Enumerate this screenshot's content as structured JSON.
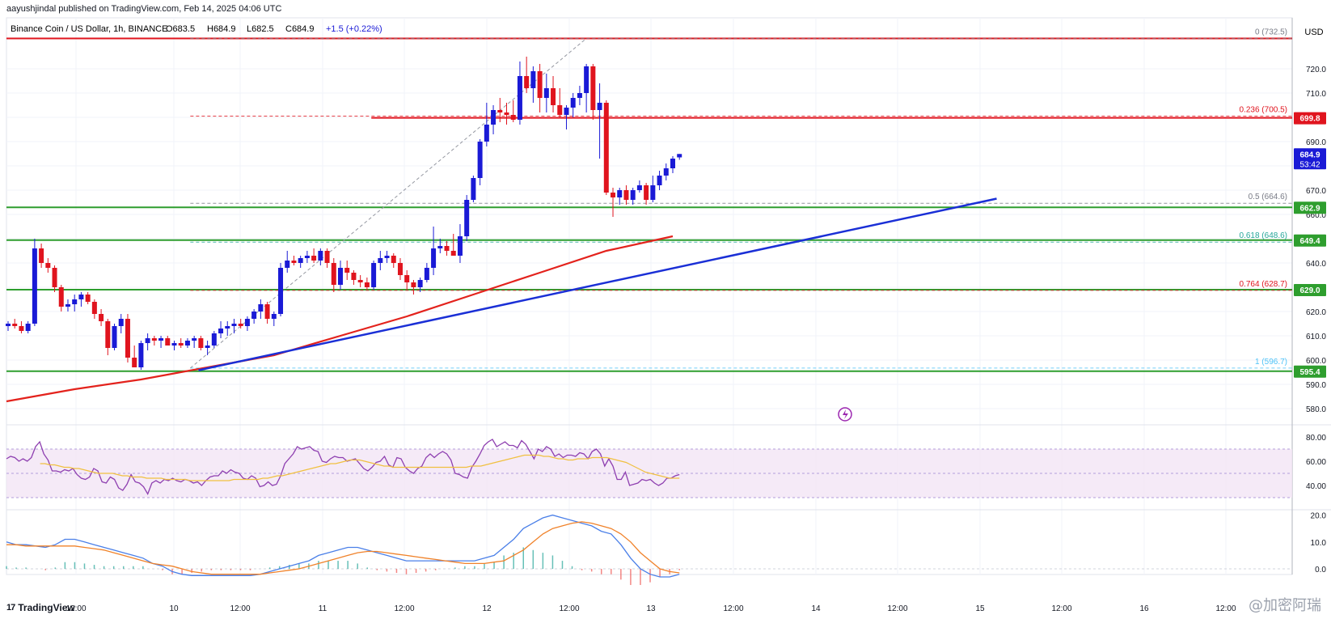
{
  "header": {
    "published": "aayushjindal published on TradingView.com, Feb 14, 2025 04:06 UTC"
  },
  "symbol_bar": {
    "title": "Binance Coin / US Dollar, 1h, BINANCE",
    "open": "O683.5",
    "high": "H684.9",
    "low": "L682.5",
    "close": "C684.9",
    "change": "+1.5 (+0.22%)"
  },
  "currency": "USD",
  "footer": {
    "brand": "TradingView",
    "watermark": "@加密阿瑞"
  },
  "colors": {
    "up_candle": "#1a1ad6",
    "down_candle": "#e0141e",
    "support_line": "#2e9e2e",
    "resistance_line": "#e0141e",
    "trendline": "#1a2fd6",
    "ma": "#e3221c",
    "rsi": "#8e3fb0",
    "rsi_ma": "#f0c040",
    "macd": "#4a7fe8",
    "signal": "#f0822a"
  },
  "chart_data": {
    "type": "candlestick",
    "timeframe": "1h",
    "y_axis": {
      "min": 575,
      "max": 735,
      "ticks": [
        580,
        590,
        600,
        610,
        620,
        630,
        640,
        650,
        660,
        670,
        680,
        690,
        700,
        710,
        720
      ]
    },
    "x_labels": [
      "12:00",
      "10",
      "12:00",
      "11",
      "12:00",
      "12",
      "12:00",
      "13",
      "12:00",
      "14",
      "12:00",
      "15",
      "12:00",
      "16",
      "12:00"
    ],
    "price_labels": [
      {
        "text": "699.8",
        "value": 699.8,
        "color": "#e0141e"
      },
      {
        "text": "684.9",
        "value": 684.9,
        "color": "#1a1ad6",
        "sub": "53:42"
      },
      {
        "text": "662.9",
        "value": 662.9,
        "color": "#2e9e2e"
      },
      {
        "text": "649.4",
        "value": 649.4,
        "color": "#2e9e2e"
      },
      {
        "text": "629.0",
        "value": 629.0,
        "color": "#2e9e2e"
      },
      {
        "text": "595.4",
        "value": 595.4,
        "color": "#2e9e2e"
      }
    ],
    "horizontal_lines": [
      {
        "value": 732.5,
        "color": "#e0141e",
        "style": "solid"
      },
      {
        "value": 699.8,
        "color": "#e0141e",
        "style": "solid",
        "from_x": 11.2
      },
      {
        "value": 662.9,
        "color": "#2e9e2e",
        "style": "solid"
      },
      {
        "value": 649.4,
        "color": "#2e9e2e",
        "style": "solid"
      },
      {
        "value": 629.0,
        "color": "#2e9e2e",
        "style": "solid"
      },
      {
        "value": 595.4,
        "color": "#2e9e2e",
        "style": "solid"
      }
    ],
    "fibonacci": [
      {
        "label": "0 (732.5)",
        "value": 732.5,
        "color": "#787b86"
      },
      {
        "label": "0.236 (700.5)",
        "value": 700.5,
        "color": "#e0141e"
      },
      {
        "label": "0.5 (664.6)",
        "value": 664.6,
        "color": "#787b86"
      },
      {
        "label": "0.618 (648.6)",
        "value": 648.6,
        "color": "#26a69a"
      },
      {
        "label": "0.764 (628.7)",
        "value": 628.7,
        "color": "#e0141e"
      },
      {
        "label": "1 (596.7)",
        "value": 596.7,
        "color": "#4fc3f7"
      }
    ],
    "trendline": {
      "from": {
        "t": 10.15,
        "value": 595.8
      },
      "to": {
        "t": 15.0,
        "value": 666.5
      }
    },
    "candles": [
      [
        0,
        614,
        616,
        612,
        615
      ],
      [
        1,
        615,
        617,
        613,
        614
      ],
      [
        2,
        614,
        616,
        611,
        612
      ],
      [
        3,
        612,
        616,
        611,
        615
      ],
      [
        4,
        615,
        650,
        614,
        646
      ],
      [
        5,
        646,
        648,
        638,
        640
      ],
      [
        6,
        640,
        642,
        636,
        638
      ],
      [
        7,
        638,
        639,
        628,
        630
      ],
      [
        8,
        630,
        631,
        620,
        622
      ],
      [
        9,
        622,
        625,
        620,
        623
      ],
      [
        10,
        623,
        627,
        620,
        625
      ],
      [
        11,
        625,
        628,
        622,
        627
      ],
      [
        12,
        627,
        628,
        623,
        624
      ],
      [
        13,
        624,
        625,
        617,
        619
      ],
      [
        14,
        619,
        621,
        614,
        616
      ],
      [
        15,
        616,
        617,
        602,
        605
      ],
      [
        16,
        605,
        615,
        604,
        614
      ],
      [
        17,
        614,
        619,
        611,
        617
      ],
      [
        18,
        617,
        619,
        599,
        601
      ],
      [
        19,
        601,
        606,
        597,
        597
      ],
      [
        20,
        597,
        608,
        596,
        607
      ],
      [
        21,
        607,
        611,
        604,
        609
      ],
      [
        22,
        609,
        610,
        606,
        608
      ],
      [
        23,
        608,
        610,
        605,
        609
      ],
      [
        24,
        609,
        610,
        606,
        606
      ],
      [
        25,
        606,
        608,
        604,
        607
      ],
      [
        26,
        607,
        609,
        605,
        606
      ],
      [
        27,
        606,
        609,
        605,
        608
      ],
      [
        28,
        608,
        610,
        605,
        609
      ],
      [
        29,
        609,
        610,
        604,
        605
      ],
      [
        30,
        605,
        608,
        602,
        606
      ],
      [
        31,
        606,
        612,
        605,
        611
      ],
      [
        32,
        611,
        616,
        609,
        613
      ],
      [
        33,
        613,
        616,
        610,
        614
      ],
      [
        34,
        614,
        617,
        611,
        615
      ],
      [
        35,
        615,
        617,
        613,
        614
      ],
      [
        36,
        614,
        618,
        612,
        617
      ],
      [
        37,
        617,
        621,
        615,
        620
      ],
      [
        38,
        620,
        625,
        617,
        623
      ],
      [
        39,
        623,
        624,
        615,
        617
      ],
      [
        40,
        617,
        620,
        614,
        619
      ],
      [
        41,
        619,
        640,
        618,
        638
      ],
      [
        42,
        638,
        645,
        636,
        641
      ],
      [
        43,
        641,
        643,
        639,
        640
      ],
      [
        44,
        640,
        643,
        638,
        642
      ],
      [
        45,
        642,
        645,
        640,
        643
      ],
      [
        46,
        643,
        646,
        640,
        641
      ],
      [
        47,
        641,
        646,
        639,
        645
      ],
      [
        48,
        645,
        646,
        638,
        640
      ],
      [
        49,
        640,
        642,
        628,
        631
      ],
      [
        50,
        631,
        641,
        629,
        638
      ],
      [
        51,
        638,
        641,
        633,
        636
      ],
      [
        52,
        636,
        637,
        631,
        633
      ],
      [
        53,
        633,
        635,
        630,
        632
      ],
      [
        54,
        632,
        634,
        629,
        630
      ],
      [
        55,
        630,
        641,
        629,
        640
      ],
      [
        56,
        640,
        645,
        637,
        642
      ],
      [
        57,
        642,
        645,
        640,
        643
      ],
      [
        58,
        643,
        644,
        638,
        640
      ],
      [
        59,
        640,
        642,
        633,
        635
      ],
      [
        60,
        635,
        637,
        629,
        632
      ],
      [
        61,
        632,
        633,
        627,
        630
      ],
      [
        62,
        630,
        634,
        628,
        633
      ],
      [
        63,
        633,
        640,
        632,
        638
      ],
      [
        64,
        638,
        655,
        635,
        646
      ],
      [
        65,
        646,
        650,
        644,
        647
      ],
      [
        66,
        647,
        649,
        643,
        645
      ],
      [
        67,
        645,
        652,
        643,
        643
      ],
      [
        68,
        643,
        656,
        640,
        651
      ],
      [
        69,
        651,
        668,
        649,
        666
      ],
      [
        70,
        666,
        676,
        665,
        675
      ],
      [
        71,
        675,
        691,
        672,
        690
      ],
      [
        72,
        690,
        706,
        688,
        697
      ],
      [
        73,
        697,
        705,
        693,
        703
      ],
      [
        74,
        703,
        708,
        698,
        702
      ],
      [
        75,
        702,
        706,
        697,
        701
      ],
      [
        76,
        701,
        707,
        698,
        699
      ],
      [
        77,
        699,
        723,
        697,
        717
      ],
      [
        78,
        717,
        725,
        710,
        712
      ],
      [
        79,
        712,
        721,
        706,
        719
      ],
      [
        80,
        719,
        722,
        702,
        708
      ],
      [
        81,
        708,
        718,
        702,
        712
      ],
      [
        82,
        712,
        717,
        702,
        705
      ],
      [
        83,
        705,
        712,
        700,
        701
      ],
      [
        84,
        701,
        705,
        695,
        704
      ],
      [
        85,
        704,
        710,
        700,
        708
      ],
      [
        86,
        708,
        713,
        705,
        710
      ],
      [
        87,
        710,
        722,
        702,
        721
      ],
      [
        88,
        721,
        722,
        699,
        703
      ],
      [
        89,
        703,
        714,
        683,
        706
      ],
      [
        90,
        706,
        707,
        668,
        669
      ],
      [
        91,
        669,
        671,
        659,
        667
      ],
      [
        92,
        667,
        671,
        664,
        670
      ],
      [
        93,
        670,
        672,
        664,
        666
      ],
      [
        94,
        666,
        671,
        664,
        670
      ],
      [
        95,
        670,
        674,
        669,
        672
      ],
      [
        96,
        672,
        673,
        664,
        666
      ],
      [
        97,
        666,
        676,
        665,
        672
      ],
      [
        98,
        672,
        678,
        670,
        676
      ],
      [
        99,
        676,
        681,
        674,
        679
      ],
      [
        100,
        679,
        684,
        677,
        683
      ],
      [
        101,
        683.5,
        684.9,
        682.5,
        684.9
      ]
    ],
    "ma_points": [
      [
        -0.2,
        583
      ],
      [
        1,
        588
      ],
      [
        2,
        592
      ],
      [
        3,
        597
      ],
      [
        4,
        602
      ],
      [
        5,
        610
      ],
      [
        6,
        618
      ],
      [
        7,
        627
      ],
      [
        8,
        636
      ],
      [
        9,
        645
      ],
      [
        10,
        651
      ]
    ],
    "rsi": {
      "range": [
        20,
        90
      ],
      "ticks": [
        40,
        60,
        80
      ],
      "band": [
        30,
        70
      ],
      "values": [
        62,
        64,
        63,
        60,
        62,
        60,
        63,
        72,
        76,
        66,
        61,
        52,
        52,
        51,
        53,
        52,
        54,
        49,
        46,
        45,
        47,
        54,
        52,
        43,
        42,
        47,
        45,
        38,
        36,
        41,
        49,
        43,
        42,
        39,
        33,
        42,
        44,
        42,
        45,
        44,
        46,
        44,
        43,
        45,
        44,
        42,
        43,
        40,
        44,
        47,
        48,
        48,
        52,
        50,
        53,
        51,
        50,
        46,
        45,
        48,
        46,
        39,
        40,
        43,
        40,
        41,
        48,
        58,
        62,
        66,
        72,
        70,
        71,
        72,
        69,
        68,
        60,
        59,
        62,
        64,
        63,
        63,
        60,
        61,
        62,
        58,
        54,
        52,
        55,
        59,
        60,
        64,
        57,
        55,
        63,
        62,
        55,
        52,
        50,
        54,
        56,
        63,
        66,
        63,
        66,
        68,
        66,
        61,
        50,
        49,
        47,
        46,
        55,
        60,
        66,
        73,
        76,
        78,
        72,
        74,
        76,
        73,
        73,
        71,
        77,
        74,
        68,
        62,
        70,
        68,
        72,
        70,
        64,
        66,
        63,
        65,
        65,
        64,
        67,
        66,
        62,
        68,
        70,
        66,
        56,
        62,
        56,
        45,
        45,
        51,
        40,
        41,
        42,
        45,
        44,
        45,
        42,
        40,
        42,
        46,
        46,
        48,
        49
      ],
      "ma_values": [
        58,
        58,
        57,
        57,
        56,
        55,
        55,
        54,
        54,
        53,
        52,
        51,
        50,
        50,
        50,
        50,
        49,
        48,
        48,
        47,
        47,
        47,
        46,
        46,
        46,
        46,
        45,
        45,
        45,
        45,
        45,
        44,
        44,
        44,
        44,
        44,
        44,
        44,
        44,
        44,
        45,
        45,
        45,
        45,
        45,
        45,
        46,
        46,
        47,
        48,
        48,
        49,
        50,
        51,
        52,
        53,
        54,
        55,
        56,
        57,
        58,
        58,
        59,
        60,
        61,
        61,
        61,
        60,
        59,
        58,
        57,
        56,
        56,
        55,
        55,
        55,
        55,
        55,
        55,
        55,
        55,
        55,
        55,
        55,
        55,
        55,
        55,
        55,
        55,
        56,
        56,
        56,
        57,
        58,
        59,
        60,
        61,
        62,
        63,
        64,
        65,
        65,
        65,
        65,
        64,
        64,
        63,
        62,
        62,
        61,
        61,
        62,
        62,
        62,
        63,
        63,
        63,
        63,
        62,
        61,
        60,
        59,
        57,
        55,
        53,
        51,
        50,
        49,
        48,
        47,
        46,
        46,
        46
      ]
    },
    "macd": {
      "range": [
        -3,
        22
      ],
      "ticks": [
        0.0,
        10.0,
        20.0
      ],
      "macd_values": [
        10,
        9,
        9,
        8.5,
        8,
        9,
        11,
        11,
        10,
        9,
        8,
        7,
        6,
        5,
        4,
        2,
        1,
        -1,
        -2,
        -2.5,
        -2.5,
        -2.5,
        -2.5,
        -2.5,
        -2.5,
        -2.5,
        -2,
        -1,
        0,
        1,
        2,
        3,
        5,
        6,
        7,
        8,
        8,
        7,
        6,
        5,
        4,
        3,
        3,
        3,
        3,
        3,
        3,
        3,
        3,
        4,
        5,
        8,
        11,
        15,
        17,
        19,
        20,
        19,
        18,
        17,
        16,
        14,
        13,
        9,
        4,
        0,
        -2,
        -3,
        -3,
        -2
      ],
      "signal_values": [
        9,
        9,
        8.5,
        8.5,
        8.5,
        8.5,
        8.5,
        8.5,
        8,
        7.5,
        7,
        6,
        5,
        4,
        3,
        2,
        1.5,
        1,
        0,
        -1,
        -1.5,
        -2,
        -2,
        -2,
        -2,
        -2,
        -2,
        -1.5,
        -1,
        -0.5,
        0,
        1,
        2,
        3,
        4,
        5,
        6,
        6.5,
        6.5,
        6,
        5.5,
        5,
        4.5,
        4,
        3.5,
        3,
        2.5,
        2,
        2,
        2,
        2.5,
        3,
        5,
        7,
        10,
        13,
        15,
        16,
        17,
        17.5,
        17,
        16,
        15,
        13,
        10,
        6,
        3,
        0,
        -1,
        -1.5
      ],
      "hist_values": [
        1,
        0.5,
        0.5,
        0,
        -0.5,
        0.5,
        2.5,
        2.5,
        2,
        1.5,
        1,
        1,
        1,
        1,
        1,
        0,
        -0.5,
        -2,
        -2,
        -1.5,
        -1,
        -0.5,
        -0.5,
        -0.5,
        -0.5,
        -0.5,
        0,
        0.5,
        1,
        1.5,
        2,
        2,
        3,
        3,
        3,
        3,
        2,
        0.5,
        -0.5,
        -1,
        -1.5,
        -2,
        -1.5,
        -1,
        -0.5,
        0,
        0.5,
        1,
        1,
        2,
        2.5,
        5,
        6,
        8,
        7,
        6,
        5,
        3,
        1,
        -0.5,
        -1,
        -2,
        -2,
        -4,
        -6,
        -6,
        -5,
        -3,
        -2,
        -0.5
      ]
    }
  }
}
